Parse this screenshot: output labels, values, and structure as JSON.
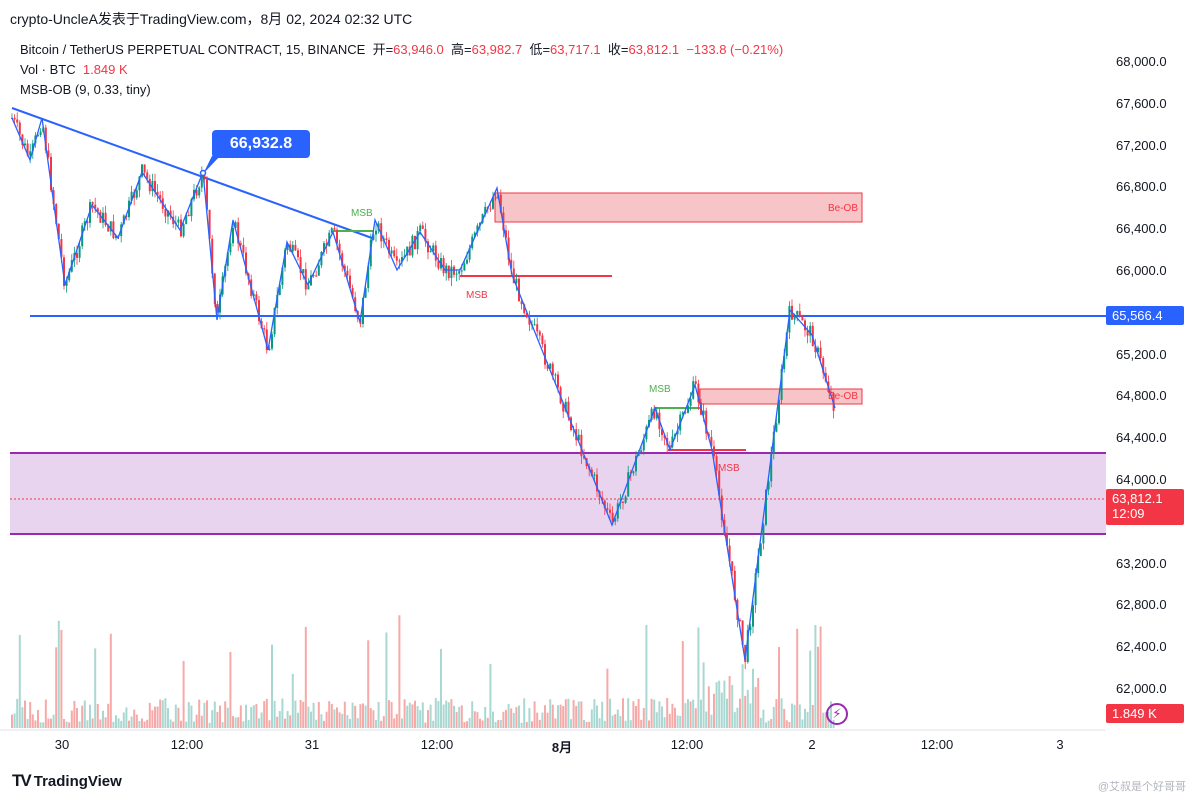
{
  "header": {
    "caption": "crypto-UncleA发表于TradingView.com，8月 02, 2024 02:32 UTC"
  },
  "legend": {
    "symbol": "Bitcoin / TetherUS PERPETUAL CONTRACT, 15, BINANCE",
    "open_label": "开=",
    "open_value": "63,946.0",
    "high_label": "高=",
    "high_value": "63,982.7",
    "low_label": "低=",
    "low_value": "63,717.1",
    "close_label": "收=",
    "close_value": "63,812.1",
    "change": "−133.8 (−0.21%)",
    "vol_label": "Vol · BTC",
    "vol_value": "1.849 K",
    "indicator": "MSB-OB (9, 0.33, tiny)"
  },
  "price_axis": {
    "ticks": [
      "68,000.0",
      "67,600.0",
      "67,200.0",
      "66,800.0",
      "66,400.0",
      "66,000.0",
      "65,200.0",
      "64,800.0",
      "64,400.0",
      "64,000.0",
      "63,200.0",
      "62,800.0",
      "62,400.0",
      "62,000.0"
    ],
    "tick_values": [
      68000,
      67600,
      67200,
      66800,
      66400,
      66000,
      65200,
      64800,
      64400,
      64000,
      63200,
      62800,
      62400,
      62000
    ]
  },
  "time_axis": {
    "ticks": [
      {
        "label": "30",
        "bold": false
      },
      {
        "label": "12:00",
        "bold": false
      },
      {
        "label": "31",
        "bold": false
      },
      {
        "label": "12:00",
        "bold": false
      },
      {
        "label": "8月",
        "bold": true
      },
      {
        "label": "12:00",
        "bold": false
      },
      {
        "label": "2",
        "bold": false
      },
      {
        "label": "12:00",
        "bold": false
      },
      {
        "label": "3",
        "bold": false
      }
    ]
  },
  "tags": {
    "level_price": "65,566.4",
    "last_price": "63,812.1",
    "countdown": "12:09",
    "volume": "1.849 K",
    "callout": "66,932.8"
  },
  "annotations": {
    "msb_bull": "MSB",
    "msb_bear": "MSB",
    "bear_ob": "Be-OB"
  },
  "colors": {
    "up": "#089981",
    "down": "#f23645",
    "trendline": "#2962ff",
    "zone": "#9c27b0",
    "ob_fill": "#f7c5c8"
  },
  "footer": {
    "logo_text": "TradingView",
    "watermark": "@艾叔是个好哥哥"
  }
}
